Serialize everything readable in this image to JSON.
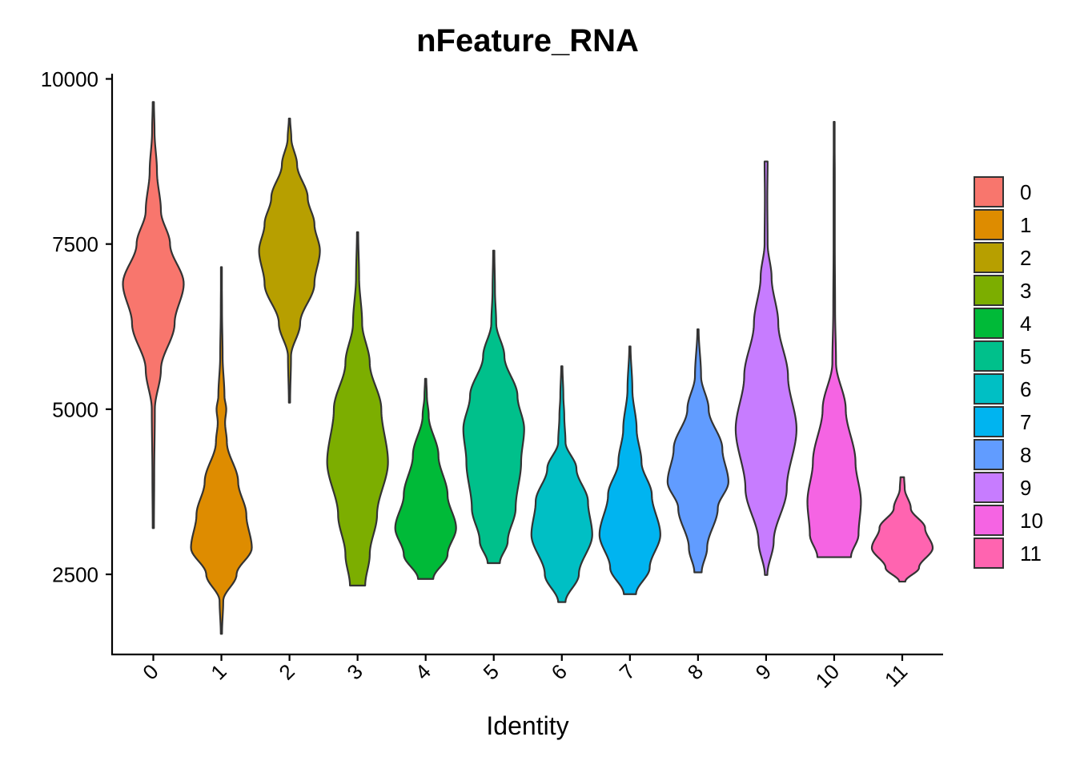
{
  "chart_data": {
    "type": "violin",
    "title": "nFeature_RNA",
    "xlabel": "Identity",
    "ylabel": "",
    "ylim": [
      1200,
      10000
    ],
    "yticks": [
      2500,
      5000,
      7500,
      10000
    ],
    "categories": [
      "0",
      "1",
      "2",
      "3",
      "4",
      "5",
      "6",
      "7",
      "8",
      "9",
      "10",
      "11"
    ],
    "colors": [
      "#F8766D",
      "#DE8C00",
      "#B79F00",
      "#7CAE00",
      "#00BA38",
      "#00C08B",
      "#00BFC4",
      "#00B4F0",
      "#619CFF",
      "#C77CFF",
      "#F564E3",
      "#FF64B0"
    ],
    "legend_position": "right",
    "grid": false,
    "series": [
      {
        "name": "0",
        "min": 3200,
        "max": 9650,
        "profile": [
          [
            3200,
            0.02
          ],
          [
            4000,
            0.03
          ],
          [
            5000,
            0.05
          ],
          [
            5600,
            0.25
          ],
          [
            6300,
            0.7
          ],
          [
            6900,
            1.0
          ],
          [
            7500,
            0.55
          ],
          [
            8000,
            0.25
          ],
          [
            8600,
            0.12
          ],
          [
            9200,
            0.04
          ],
          [
            9650,
            0.02
          ]
        ]
      },
      {
        "name": "1",
        "min": 1600,
        "max": 7150,
        "profile": [
          [
            1600,
            0.02
          ],
          [
            2100,
            0.06
          ],
          [
            2500,
            0.5
          ],
          [
            2900,
            1.0
          ],
          [
            3400,
            0.82
          ],
          [
            3900,
            0.55
          ],
          [
            4500,
            0.18
          ],
          [
            4800,
            0.12
          ],
          [
            5000,
            0.16
          ],
          [
            5200,
            0.1
          ],
          [
            5800,
            0.04
          ],
          [
            6500,
            0.02
          ],
          [
            7150,
            0.01
          ]
        ]
      },
      {
        "name": "2",
        "min": 5100,
        "max": 9400,
        "profile": [
          [
            5100,
            0.02
          ],
          [
            5800,
            0.05
          ],
          [
            6300,
            0.35
          ],
          [
            6900,
            0.82
          ],
          [
            7400,
            1.0
          ],
          [
            7800,
            0.82
          ],
          [
            8200,
            0.6
          ],
          [
            8700,
            0.25
          ],
          [
            9100,
            0.06
          ],
          [
            9400,
            0.02
          ]
        ]
      },
      {
        "name": "3",
        "min": 2330,
        "max": 7680,
        "profile": [
          [
            2330,
            0.25
          ],
          [
            2800,
            0.4
          ],
          [
            3400,
            0.64
          ],
          [
            4200,
            1.0
          ],
          [
            5000,
            0.78
          ],
          [
            5700,
            0.4
          ],
          [
            6300,
            0.15
          ],
          [
            7000,
            0.05
          ],
          [
            7680,
            0.02
          ]
        ]
      },
      {
        "name": "4",
        "min": 2430,
        "max": 5460,
        "profile": [
          [
            2430,
            0.25
          ],
          [
            2800,
            0.72
          ],
          [
            3200,
            1.0
          ],
          [
            3700,
            0.72
          ],
          [
            4300,
            0.42
          ],
          [
            4900,
            0.1
          ],
          [
            5200,
            0.04
          ],
          [
            5460,
            0.02
          ]
        ]
      },
      {
        "name": "5",
        "min": 2670,
        "max": 7400,
        "profile": [
          [
            2670,
            0.2
          ],
          [
            3000,
            0.46
          ],
          [
            3500,
            0.72
          ],
          [
            4200,
            0.9
          ],
          [
            4700,
            1.0
          ],
          [
            5200,
            0.78
          ],
          [
            5800,
            0.35
          ],
          [
            6300,
            0.08
          ],
          [
            6800,
            0.04
          ],
          [
            7400,
            0.02
          ]
        ]
      },
      {
        "name": "6",
        "min": 2080,
        "max": 5650,
        "profile": [
          [
            2080,
            0.12
          ],
          [
            2500,
            0.56
          ],
          [
            3100,
            1.0
          ],
          [
            3600,
            0.86
          ],
          [
            4100,
            0.48
          ],
          [
            4500,
            0.12
          ],
          [
            4900,
            0.08
          ],
          [
            5200,
            0.05
          ],
          [
            5650,
            0.02
          ]
        ]
      },
      {
        "name": "7",
        "min": 2200,
        "max": 5950,
        "profile": [
          [
            2200,
            0.2
          ],
          [
            2600,
            0.65
          ],
          [
            3100,
            1.0
          ],
          [
            3700,
            0.72
          ],
          [
            4200,
            0.38
          ],
          [
            4700,
            0.22
          ],
          [
            5300,
            0.08
          ],
          [
            5950,
            0.02
          ]
        ]
      },
      {
        "name": "8",
        "min": 2530,
        "max": 6210,
        "profile": [
          [
            2530,
            0.12
          ],
          [
            2900,
            0.3
          ],
          [
            3500,
            0.65
          ],
          [
            3900,
            1.0
          ],
          [
            4400,
            0.8
          ],
          [
            5000,
            0.35
          ],
          [
            5500,
            0.1
          ],
          [
            6210,
            0.02
          ]
        ]
      },
      {
        "name": "9",
        "min": 2490,
        "max": 8750,
        "profile": [
          [
            2490,
            0.04
          ],
          [
            3000,
            0.25
          ],
          [
            3800,
            0.68
          ],
          [
            4700,
            1.0
          ],
          [
            5500,
            0.72
          ],
          [
            6300,
            0.4
          ],
          [
            7000,
            0.18
          ],
          [
            7500,
            0.05
          ],
          [
            8200,
            0.04
          ],
          [
            8750,
            0.05
          ]
        ]
      },
      {
        "name": "10",
        "min": 2760,
        "max": 9350,
        "profile": [
          [
            2760,
            0.55
          ],
          [
            3100,
            0.8
          ],
          [
            3600,
            0.88
          ],
          [
            4200,
            0.7
          ],
          [
            5000,
            0.38
          ],
          [
            5700,
            0.06
          ],
          [
            6500,
            0.03
          ],
          [
            7500,
            0.02
          ],
          [
            8500,
            0.02
          ],
          [
            9350,
            0.01
          ]
        ]
      },
      {
        "name": "11",
        "min": 2390,
        "max": 3970,
        "profile": [
          [
            2390,
            0.1
          ],
          [
            2600,
            0.55
          ],
          [
            2900,
            1.0
          ],
          [
            3200,
            0.75
          ],
          [
            3500,
            0.28
          ],
          [
            3800,
            0.08
          ],
          [
            3970,
            0.06
          ]
        ]
      }
    ]
  }
}
